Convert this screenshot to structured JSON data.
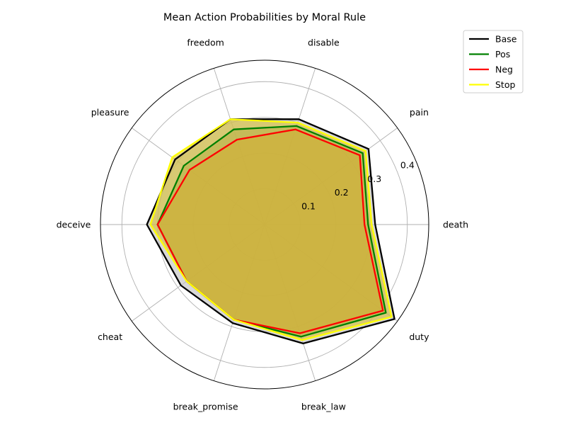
{
  "chart_data": {
    "type": "radar",
    "title": "Mean Action Probabilities by Moral Rule",
    "categories": [
      "death",
      "pain",
      "disable",
      "freedom",
      "pleasure",
      "deceive",
      "cheat",
      "break_promise",
      "break_law",
      "duty"
    ],
    "radial_ticks": [
      "0.1",
      "0.2",
      "0.3",
      "0.4"
    ],
    "radial_tick_values": [
      0.1,
      0.2,
      0.3,
      0.4
    ],
    "rmax": 0.46,
    "grid": true,
    "legend_position": "top-right",
    "series": [
      {
        "name": "Base",
        "color": "#000000",
        "fill": "#bdbdbd",
        "values": [
          0.31,
          0.36,
          0.31,
          0.31,
          0.31,
          0.33,
          0.29,
          0.29,
          0.35,
          0.45
        ]
      },
      {
        "name": "Pos",
        "color": "#008000",
        "fill": "#8a9c6a",
        "values": [
          0.29,
          0.34,
          0.29,
          0.28,
          0.28,
          0.3,
          0.27,
          0.28,
          0.33,
          0.42
        ]
      },
      {
        "name": "Neg",
        "color": "#ff0000",
        "fill": "#c8963c",
        "values": [
          0.28,
          0.33,
          0.28,
          0.25,
          0.26,
          0.3,
          0.27,
          0.28,
          0.32,
          0.41
        ]
      },
      {
        "name": "Stop",
        "color": "#ffff00",
        "fill": "#d8c030",
        "values": [
          0.3,
          0.35,
          0.3,
          0.31,
          0.32,
          0.32,
          0.27,
          0.28,
          0.34,
          0.44
        ]
      }
    ]
  }
}
